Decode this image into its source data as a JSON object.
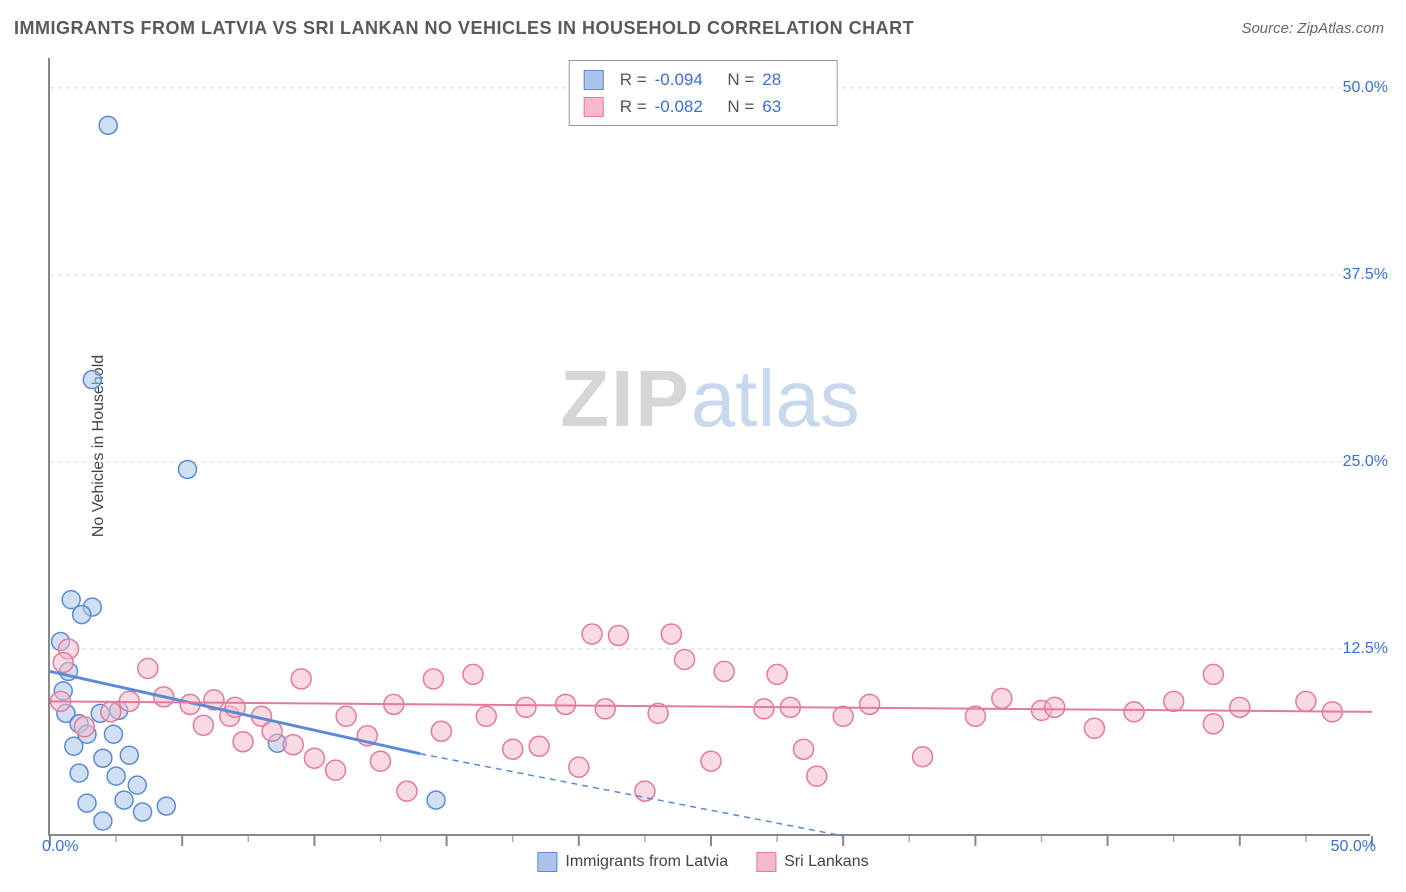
{
  "title": "IMMIGRANTS FROM LATVIA VS SRI LANKAN NO VEHICLES IN HOUSEHOLD CORRELATION CHART",
  "source": "Source: ZipAtlas.com",
  "ylabel": "No Vehicles in Household",
  "watermark": {
    "zip": "ZIP",
    "atlas": "atlas"
  },
  "chart": {
    "type": "scatter",
    "xlim": [
      0,
      50
    ],
    "ylim": [
      0,
      52
    ],
    "x_ticks_major": [
      0,
      5,
      10,
      15,
      20,
      25,
      30,
      35,
      40,
      45,
      50
    ],
    "x_tick_labels": {
      "first": "0.0%",
      "last": "50.0%"
    },
    "y_ticks": [
      {
        "v": 12.5,
        "label": "12.5%"
      },
      {
        "v": 25.0,
        "label": "25.0%"
      },
      {
        "v": 37.5,
        "label": "37.5%"
      },
      {
        "v": 50.0,
        "label": "50.0%"
      }
    ],
    "grid_color": "#d8d8d8",
    "grid_dash": "4,4",
    "background_color": "#ffffff",
    "series": [
      {
        "name": "Immigrants from Latvia",
        "color_stroke": "#5b8bd4",
        "color_fill": "#a9c5ea",
        "marker_fill_opacity": 0.55,
        "marker_r": 9,
        "trend": {
          "x1": 0,
          "y1": 11.0,
          "x2": 14.0,
          "y2": 5.5,
          "width": 3,
          "dash_after_x": 14.0,
          "x2_ext": 30.0,
          "y2_ext": 0
        },
        "R": "-0.094",
        "N": "28",
        "points": [
          {
            "x": 2.2,
            "y": 47.5
          },
          {
            "x": 1.6,
            "y": 30.5
          },
          {
            "x": 5.2,
            "y": 24.5
          },
          {
            "x": 0.8,
            "y": 15.8
          },
          {
            "x": 1.6,
            "y": 15.3
          },
          {
            "x": 1.2,
            "y": 14.8
          },
          {
            "x": 0.4,
            "y": 13.0
          },
          {
            "x": 0.7,
            "y": 11.0
          },
          {
            "x": 0.5,
            "y": 9.7
          },
          {
            "x": 0.6,
            "y": 8.2
          },
          {
            "x": 1.9,
            "y": 8.2
          },
          {
            "x": 2.6,
            "y": 8.4
          },
          {
            "x": 1.1,
            "y": 7.5
          },
          {
            "x": 1.4,
            "y": 6.8
          },
          {
            "x": 2.4,
            "y": 6.8
          },
          {
            "x": 0.9,
            "y": 6.0
          },
          {
            "x": 2.0,
            "y": 5.2
          },
          {
            "x": 3.0,
            "y": 5.4
          },
          {
            "x": 1.1,
            "y": 4.2
          },
          {
            "x": 2.5,
            "y": 4.0
          },
          {
            "x": 3.3,
            "y": 3.4
          },
          {
            "x": 1.4,
            "y": 2.2
          },
          {
            "x": 2.8,
            "y": 2.4
          },
          {
            "x": 4.4,
            "y": 2.0
          },
          {
            "x": 2.0,
            "y": 1.0
          },
          {
            "x": 3.5,
            "y": 1.6
          },
          {
            "x": 8.6,
            "y": 6.2
          },
          {
            "x": 14.6,
            "y": 2.4
          }
        ]
      },
      {
        "name": "Sri Lankans",
        "color_stroke": "#e47a9b",
        "color_fill": "#f4b9cb",
        "marker_fill_opacity": 0.55,
        "marker_r": 10,
        "trend": {
          "x1": 0,
          "y1": 9.0,
          "x2": 50,
          "y2": 8.3,
          "width": 2
        },
        "R": "-0.082",
        "N": "63",
        "points": [
          {
            "x": 0.7,
            "y": 12.5
          },
          {
            "x": 0.5,
            "y": 11.6
          },
          {
            "x": 0.4,
            "y": 9.0
          },
          {
            "x": 1.3,
            "y": 7.3
          },
          {
            "x": 3.7,
            "y": 11.2
          },
          {
            "x": 2.3,
            "y": 8.3
          },
          {
            "x": 3.0,
            "y": 9.0
          },
          {
            "x": 4.3,
            "y": 9.3
          },
          {
            "x": 5.3,
            "y": 8.8
          },
          {
            "x": 5.8,
            "y": 7.4
          },
          {
            "x": 6.2,
            "y": 9.1
          },
          {
            "x": 6.8,
            "y": 8.0
          },
          {
            "x": 7.3,
            "y": 6.3
          },
          {
            "x": 7.0,
            "y": 8.6
          },
          {
            "x": 8.0,
            "y": 8.0
          },
          {
            "x": 8.4,
            "y": 7.0
          },
          {
            "x": 9.5,
            "y": 10.5
          },
          {
            "x": 9.2,
            "y": 6.1
          },
          {
            "x": 10.0,
            "y": 5.2
          },
          {
            "x": 10.8,
            "y": 4.4
          },
          {
            "x": 11.2,
            "y": 8.0
          },
          {
            "x": 12.0,
            "y": 6.7
          },
          {
            "x": 12.5,
            "y": 5.0
          },
          {
            "x": 13.0,
            "y": 8.8
          },
          {
            "x": 13.5,
            "y": 3.0
          },
          {
            "x": 14.5,
            "y": 10.5
          },
          {
            "x": 14.8,
            "y": 7.0
          },
          {
            "x": 16.0,
            "y": 10.8
          },
          {
            "x": 16.5,
            "y": 8.0
          },
          {
            "x": 17.5,
            "y": 5.8
          },
          {
            "x": 18.0,
            "y": 8.6
          },
          {
            "x": 18.5,
            "y": 6.0
          },
          {
            "x": 19.5,
            "y": 8.8
          },
          {
            "x": 20.0,
            "y": 4.6
          },
          {
            "x": 20.5,
            "y": 13.5
          },
          {
            "x": 21.0,
            "y": 8.5
          },
          {
            "x": 21.5,
            "y": 13.4
          },
          {
            "x": 22.5,
            "y": 3.0
          },
          {
            "x": 23.5,
            "y": 13.5
          },
          {
            "x": 23.0,
            "y": 8.2
          },
          {
            "x": 24.0,
            "y": 11.8
          },
          {
            "x": 25.0,
            "y": 5.0
          },
          {
            "x": 25.5,
            "y": 11.0
          },
          {
            "x": 27.0,
            "y": 8.5
          },
          {
            "x": 27.5,
            "y": 10.8
          },
          {
            "x": 28.0,
            "y": 8.6
          },
          {
            "x": 28.5,
            "y": 5.8
          },
          {
            "x": 29.0,
            "y": 4.0
          },
          {
            "x": 30.0,
            "y": 8.0
          },
          {
            "x": 31.0,
            "y": 8.8
          },
          {
            "x": 33.0,
            "y": 5.3
          },
          {
            "x": 35.0,
            "y": 8.0
          },
          {
            "x": 36.0,
            "y": 9.2
          },
          {
            "x": 37.5,
            "y": 8.4
          },
          {
            "x": 38.0,
            "y": 8.6
          },
          {
            "x": 39.5,
            "y": 7.2
          },
          {
            "x": 41.0,
            "y": 8.3
          },
          {
            "x": 42.5,
            "y": 9.0
          },
          {
            "x": 44.0,
            "y": 10.8
          },
          {
            "x": 44.0,
            "y": 7.5
          },
          {
            "x": 45.0,
            "y": 8.6
          },
          {
            "x": 47.5,
            "y": 9.0
          },
          {
            "x": 48.5,
            "y": 8.3
          }
        ]
      }
    ],
    "bottom_legend": [
      {
        "swatch_fill": "#a9c5ea",
        "swatch_stroke": "#5b8bd4",
        "label": "Immigrants from Latvia"
      },
      {
        "swatch_fill": "#f4b9cb",
        "swatch_stroke": "#e47a9b",
        "label": "Sri Lankans"
      }
    ]
  }
}
